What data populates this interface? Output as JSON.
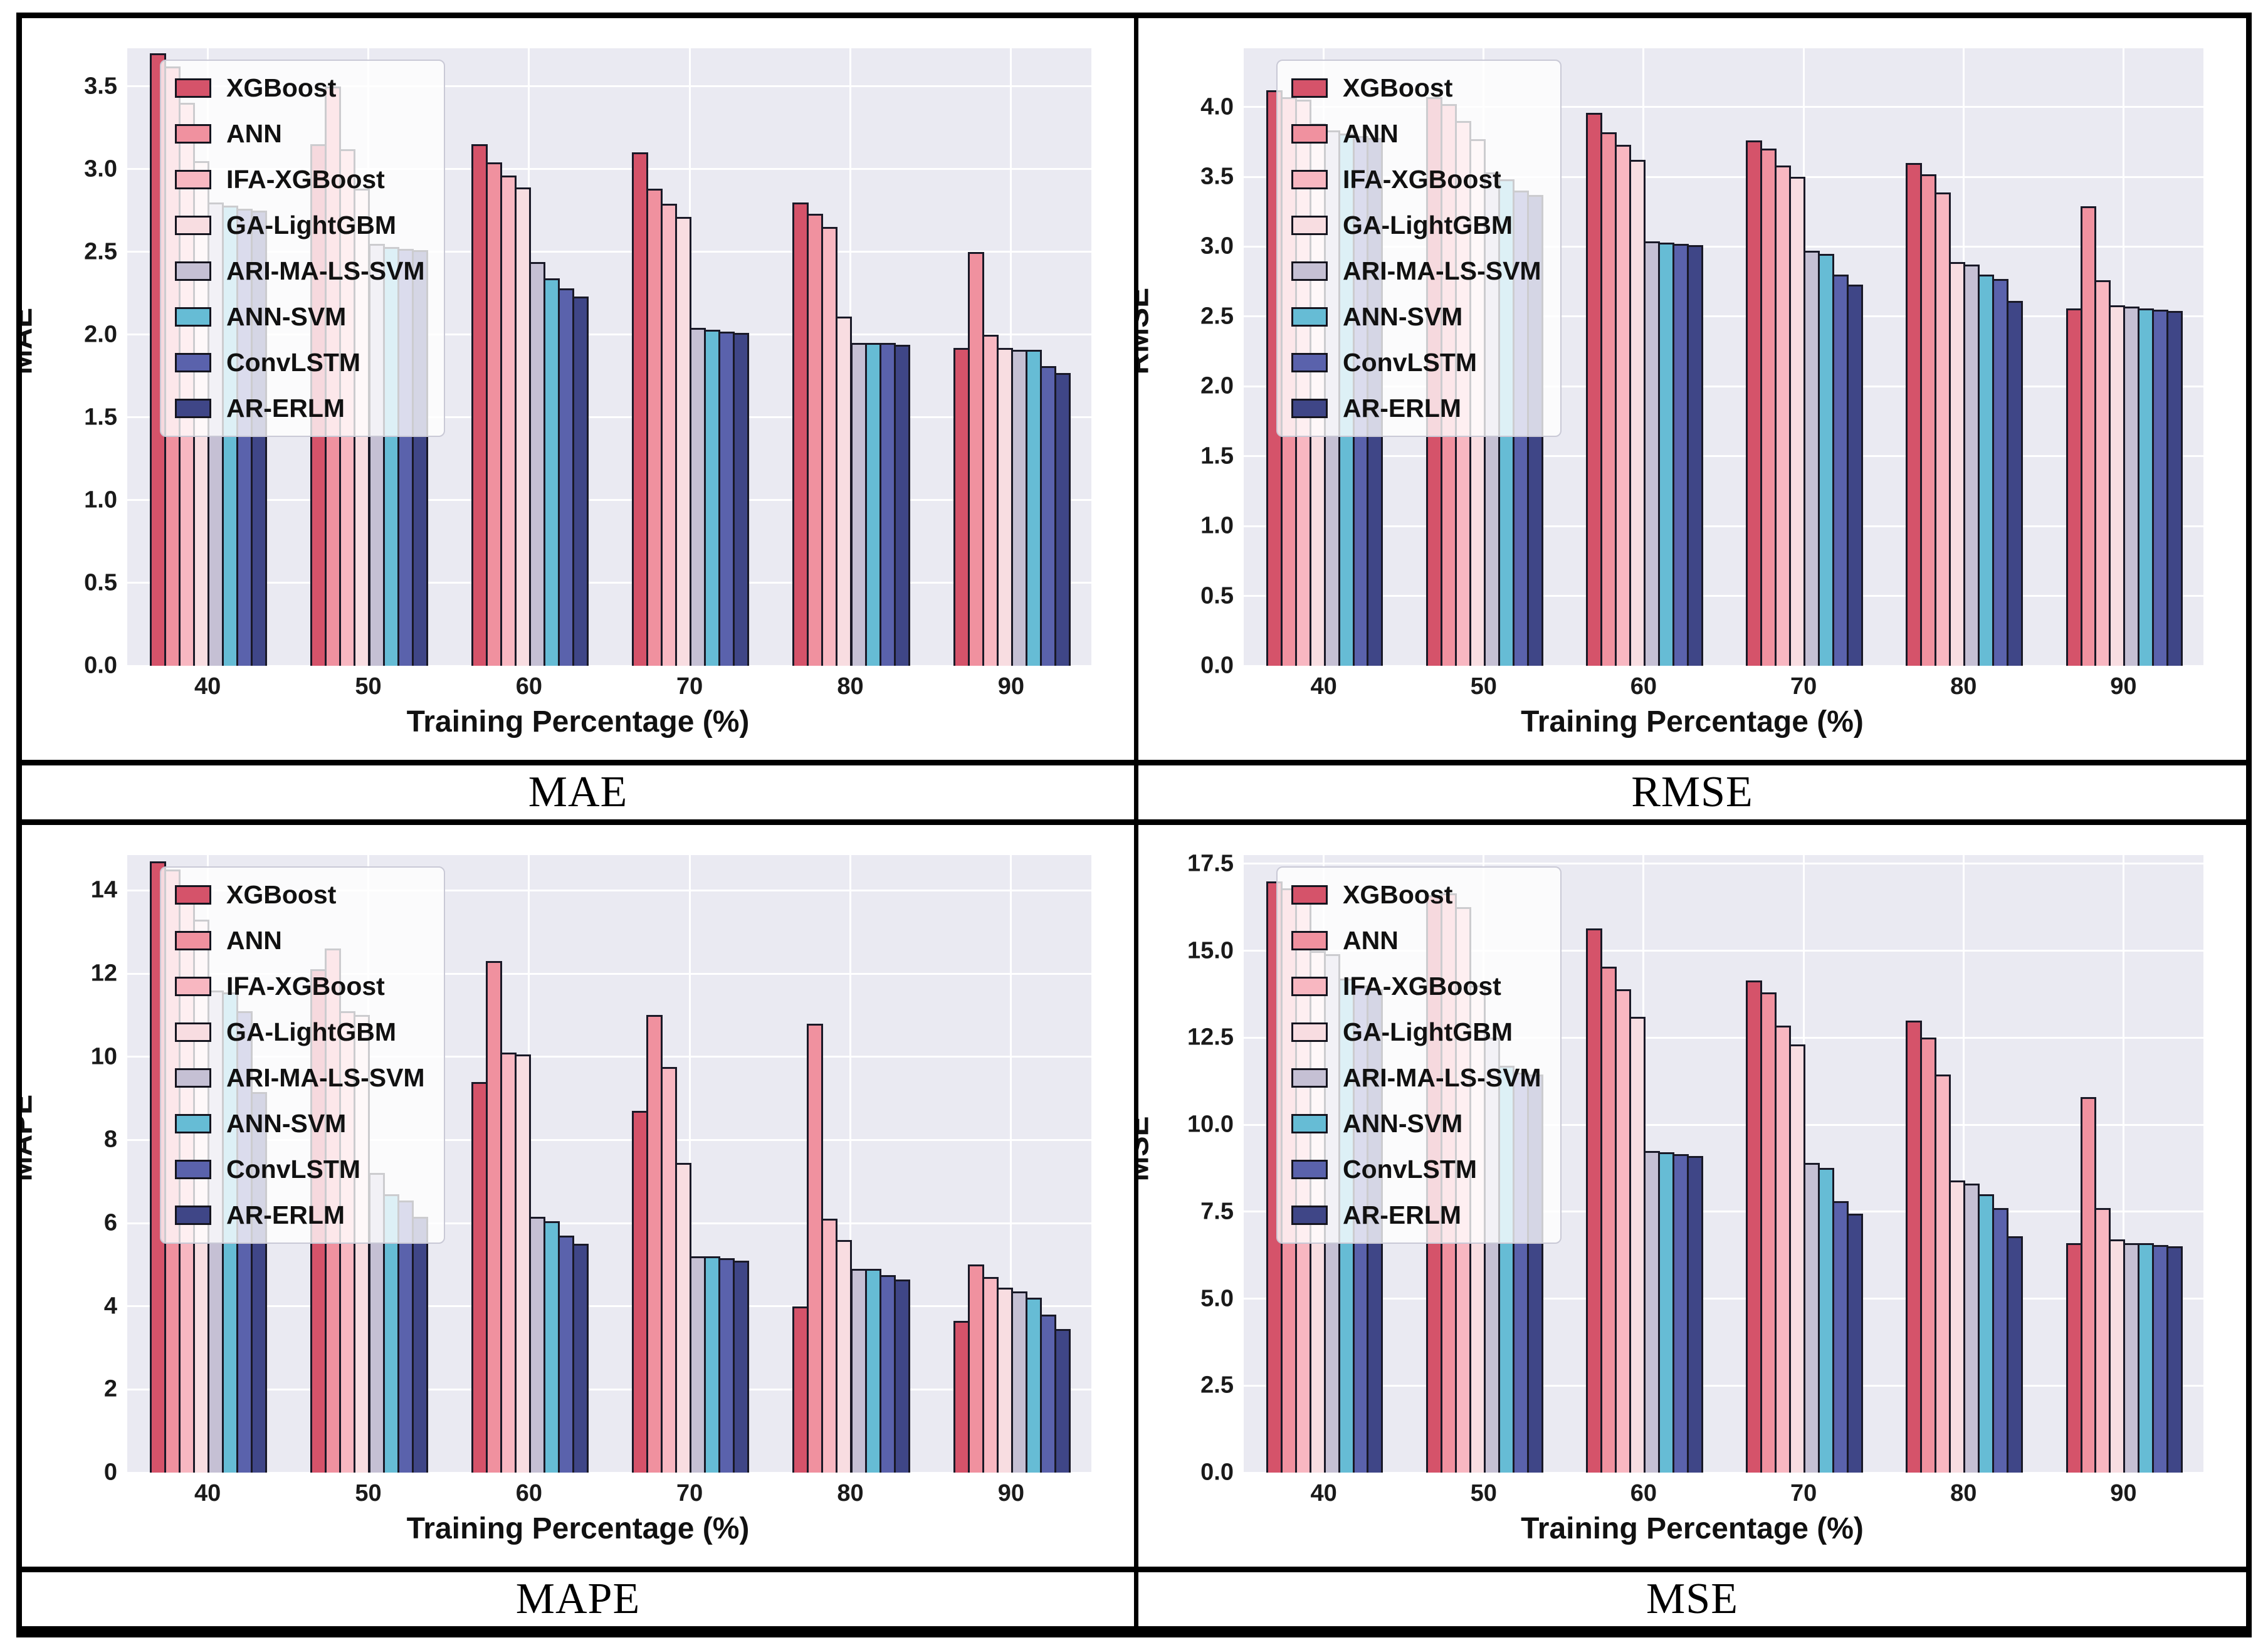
{
  "figure": {
    "background": "#ffffff",
    "border_color": "#000000",
    "plot_background": "#eaeaf2",
    "grid_color": "#ffffff",
    "bar_edge_color": "#191927",
    "palette": [
      "#d5536a",
      "#f0919f",
      "#f8b7c1",
      "#f8dde1",
      "#c5c0d4",
      "#66bcd5",
      "#5a62ac",
      "#3f4687"
    ]
  },
  "legend_labels": [
    "XGBoost",
    "ANN",
    "IFA-XGBoost",
    "GA-LightGBM",
    "ARI-MA-LS-SVM",
    "ANN-SVM",
    "ConvLSTM",
    "AR-ERLM"
  ],
  "chart_data": [
    {
      "type": "bar",
      "caption": "MAE",
      "ylabel": "MAE",
      "xlabel": "Training Percentage (%)",
      "categories": [
        "40",
        "50",
        "60",
        "70",
        "80",
        "90"
      ],
      "ytick_labels": [
        "0.0",
        "0.5",
        "1.0",
        "1.5",
        "2.0",
        "2.5",
        "3.0",
        "3.5"
      ],
      "ytick_values": [
        0,
        0.5,
        1,
        1.5,
        2,
        2.5,
        3,
        3.5
      ],
      "ymax": 3.73,
      "legend_position": "upper-left",
      "grid": true,
      "series": [
        {
          "name": "XGBoost",
          "color": "#d5536a",
          "values": [
            3.7,
            3.15,
            3.15,
            3.1,
            2.8,
            1.92
          ]
        },
        {
          "name": "ANN",
          "color": "#f0919f",
          "values": [
            3.62,
            3.5,
            3.04,
            2.88,
            2.73,
            2.5
          ]
        },
        {
          "name": "IFA-XGBoost",
          "color": "#f8b7c1",
          "values": [
            3.4,
            3.12,
            2.96,
            2.79,
            2.65,
            2.0
          ]
        },
        {
          "name": "GA-LightGBM",
          "color": "#f8dde1",
          "values": [
            3.05,
            2.88,
            2.89,
            2.71,
            2.11,
            1.92
          ]
        },
        {
          "name": "ARI-MA-LS-SVM",
          "color": "#c5c0d4",
          "values": [
            2.8,
            2.55,
            2.44,
            2.04,
            1.95,
            1.91
          ]
        },
        {
          "name": "ANN-SVM",
          "color": "#66bcd5",
          "values": [
            2.78,
            2.53,
            2.34,
            2.03,
            1.95,
            1.91
          ]
        },
        {
          "name": "ConvLSTM",
          "color": "#5a62ac",
          "values": [
            2.76,
            2.52,
            2.28,
            2.02,
            1.95,
            1.81
          ]
        },
        {
          "name": "AR-ERLM",
          "color": "#3f4687",
          "values": [
            2.75,
            2.51,
            2.23,
            2.01,
            1.94,
            1.77
          ]
        }
      ]
    },
    {
      "type": "bar",
      "caption": "RMSE",
      "ylabel": "RMSE",
      "xlabel": "Training Percentage (%)",
      "categories": [
        "40",
        "50",
        "60",
        "70",
        "80",
        "90"
      ],
      "ytick_labels": [
        "0.0",
        "0.5",
        "1.0",
        "1.5",
        "2.0",
        "2.5",
        "3.0",
        "3.5",
        "4.0"
      ],
      "ytick_values": [
        0,
        0.5,
        1,
        1.5,
        2,
        2.5,
        3,
        3.5,
        4
      ],
      "ymax": 4.42,
      "legend_position": "upper-left",
      "grid": true,
      "series": [
        {
          "name": "XGBoost",
          "color": "#d5536a",
          "values": [
            4.12,
            4.07,
            3.96,
            3.76,
            3.6,
            2.56
          ]
        },
        {
          "name": "ANN",
          "color": "#f0919f",
          "values": [
            4.07,
            4.02,
            3.82,
            3.7,
            3.52,
            3.29
          ]
        },
        {
          "name": "IFA-XGBoost",
          "color": "#f8b7c1",
          "values": [
            4.05,
            3.9,
            3.73,
            3.58,
            3.39,
            2.76
          ]
        },
        {
          "name": "GA-LightGBM",
          "color": "#f8dde1",
          "values": [
            3.88,
            3.77,
            3.62,
            3.5,
            2.89,
            2.58
          ]
        },
        {
          "name": "ARI-MA-LS-SVM",
          "color": "#c5c0d4",
          "values": [
            3.83,
            3.53,
            3.04,
            2.97,
            2.87,
            2.57
          ]
        },
        {
          "name": "ANN-SVM",
          "color": "#66bcd5",
          "values": [
            3.81,
            3.48,
            3.03,
            2.95,
            2.8,
            2.56
          ]
        },
        {
          "name": "ConvLSTM",
          "color": "#5a62ac",
          "values": [
            3.79,
            3.4,
            3.02,
            2.8,
            2.77,
            2.55
          ]
        },
        {
          "name": "AR-ERLM",
          "color": "#3f4687",
          "values": [
            3.78,
            3.37,
            3.01,
            2.73,
            2.61,
            2.54
          ]
        }
      ]
    },
    {
      "type": "bar",
      "caption": "MAPE",
      "ylabel": "MAPE",
      "xlabel": "Training Percentage (%)",
      "categories": [
        "40",
        "50",
        "60",
        "70",
        "80",
        "90"
      ],
      "ytick_labels": [
        "0",
        "2",
        "4",
        "6",
        "8",
        "10",
        "12",
        "14"
      ],
      "ytick_values": [
        0,
        2,
        4,
        6,
        8,
        10,
        12,
        14
      ],
      "ymax": 14.85,
      "legend_position": "upper-left",
      "grid": true,
      "series": [
        {
          "name": "XGBoost",
          "color": "#d5536a",
          "values": [
            14.7,
            12.1,
            9.4,
            8.7,
            4.0,
            3.65
          ]
        },
        {
          "name": "ANN",
          "color": "#f0919f",
          "values": [
            14.5,
            12.6,
            12.3,
            11.0,
            10.8,
            5.0
          ]
        },
        {
          "name": "IFA-XGBoost",
          "color": "#f8b7c1",
          "values": [
            14.0,
            11.1,
            10.1,
            9.75,
            6.1,
            4.7
          ]
        },
        {
          "name": "GA-LightGBM",
          "color": "#f8dde1",
          "values": [
            13.3,
            11.0,
            10.05,
            7.45,
            5.6,
            4.45
          ]
        },
        {
          "name": "ARI-MA-LS-SVM",
          "color": "#c5c0d4",
          "values": [
            11.6,
            7.2,
            6.15,
            5.2,
            4.9,
            4.35
          ]
        },
        {
          "name": "ANN-SVM",
          "color": "#66bcd5",
          "values": [
            11.55,
            6.7,
            6.05,
            5.2,
            4.9,
            4.2
          ]
        },
        {
          "name": "ConvLSTM",
          "color": "#5a62ac",
          "values": [
            11.1,
            6.55,
            5.7,
            5.15,
            4.75,
            3.8
          ]
        },
        {
          "name": "AR-ERLM",
          "color": "#3f4687",
          "values": [
            9.15,
            6.15,
            5.5,
            5.1,
            4.65,
            3.45
          ]
        }
      ]
    },
    {
      "type": "bar",
      "caption": "MSE",
      "ylabel": "MSE",
      "xlabel": "Training Percentage (%)",
      "categories": [
        "40",
        "50",
        "60",
        "70",
        "80",
        "90"
      ],
      "ytick_labels": [
        "0.0",
        "2.5",
        "5.0",
        "7.5",
        "10.0",
        "12.5",
        "15.0",
        "17.5"
      ],
      "ytick_values": [
        0,
        2.5,
        5,
        7.5,
        10,
        12.5,
        15,
        17.5
      ],
      "ymax": 17.75,
      "legend_position": "upper-left",
      "grid": true,
      "series": [
        {
          "name": "XGBoost",
          "color": "#d5536a",
          "values": [
            17.0,
            16.6,
            15.65,
            14.15,
            13.0,
            6.6
          ]
        },
        {
          "name": "ANN",
          "color": "#f0919f",
          "values": [
            16.8,
            16.65,
            14.55,
            13.8,
            12.5,
            10.8
          ]
        },
        {
          "name": "IFA-XGBoost",
          "color": "#f8b7c1",
          "values": [
            16.6,
            16.25,
            13.9,
            12.85,
            11.45,
            7.6
          ]
        },
        {
          "name": "GA-LightGBM",
          "color": "#f8dde1",
          "values": [
            15.0,
            14.0,
            13.1,
            12.3,
            8.4,
            6.7
          ]
        },
        {
          "name": "ARI-MA-LS-SVM",
          "color": "#c5c0d4",
          "values": [
            14.9,
            12.5,
            9.25,
            8.9,
            8.3,
            6.6
          ]
        },
        {
          "name": "ANN-SVM",
          "color": "#66bcd5",
          "values": [
            14.2,
            11.7,
            9.2,
            8.75,
            8.0,
            6.6
          ]
        },
        {
          "name": "ConvLSTM",
          "color": "#5a62ac",
          "values": [
            14.0,
            11.5,
            9.15,
            7.8,
            7.6,
            6.55
          ]
        },
        {
          "name": "AR-ERLM",
          "color": "#3f4687",
          "values": [
            13.9,
            11.45,
            9.1,
            7.45,
            6.8,
            6.5
          ]
        }
      ]
    }
  ]
}
